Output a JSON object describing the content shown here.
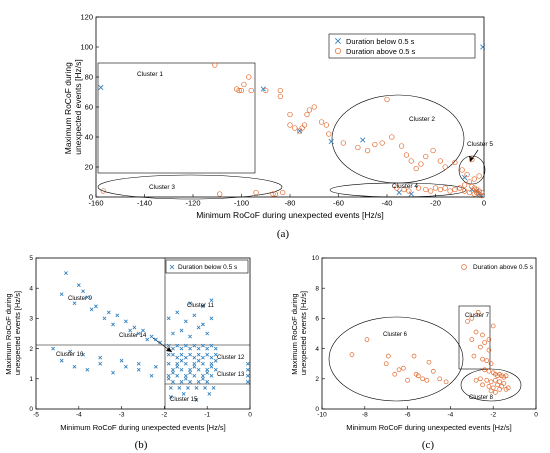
{
  "panel_a": {
    "caption": "(a)",
    "chart_data": {
      "type": "scatter",
      "xlabel": "Minimum RoCoF during unexpected events [Hz/s]",
      "ylabel": "Maximum RoCoF during unexpected events [Hz/s]",
      "xlim": [
        -160,
        0
      ],
      "ylim": [
        0,
        120
      ],
      "xticks": [
        "-160",
        "-140",
        "-120",
        "-100",
        "-80",
        "-60",
        "-40",
        "-20",
        "0"
      ],
      "yticks": [
        "0",
        "20",
        "40",
        "60",
        "80",
        "100",
        "120"
      ],
      "legend_position": "top-right",
      "series": [
        {
          "name": "Duration below 0.5 s",
          "marker": "x",
          "color": "#2a7ab9",
          "x": [
            -158,
            -91,
            -76,
            -63,
            -50,
            -8,
            -5,
            -3,
            -2,
            -1,
            -35,
            -30,
            -0.5
          ],
          "y": [
            73,
            72,
            44,
            37,
            38,
            13,
            5,
            4,
            2,
            1,
            3,
            2,
            100
          ]
        },
        {
          "name": "Duration above 0.5 s",
          "marker": "o",
          "color": "#e2662a",
          "x": [
            -157,
            -111,
            -102,
            -101,
            -100,
            -99,
            -97,
            -96,
            -90,
            -84,
            -84,
            -80,
            -80,
            -78,
            -76,
            -75,
            -74,
            -73,
            -72,
            -70,
            -67,
            -65,
            -64,
            -58,
            -52,
            -48,
            -45,
            -42,
            -40,
            -38,
            -34,
            -32,
            -30,
            -28,
            -26,
            -24,
            -21,
            -18,
            -16,
            -12,
            -9,
            -7,
            -5,
            -4,
            -2,
            -109,
            -94,
            -87,
            -86,
            -83,
            -10,
            -8,
            -6,
            -5,
            -4,
            -3,
            -2,
            -1,
            -36,
            -33,
            -31,
            -27,
            -24,
            -22,
            -20,
            -18,
            -16,
            -14,
            -12,
            -10,
            -8,
            -6,
            -4,
            -3,
            -2,
            -1
          ],
          "y": [
            4,
            88,
            72,
            71,
            71,
            75,
            80,
            71,
            71,
            67,
            71,
            55,
            48,
            46,
            44,
            46,
            48,
            55,
            58,
            60,
            50,
            48,
            42,
            36,
            33,
            31,
            35,
            36,
            65,
            40,
            34,
            28,
            24,
            19,
            22,
            27,
            31,
            24,
            20,
            23,
            18,
            15,
            25,
            12,
            14,
            2,
            3,
            2,
            2,
            3,
            6,
            8,
            10,
            7,
            6,
            5,
            4,
            3,
            6,
            5,
            4,
            6,
            5,
            4,
            6,
            5,
            6,
            4,
            5,
            6,
            4,
            3,
            2,
            3,
            2,
            1
          ]
        }
      ],
      "annotations": [
        "Cluster 1",
        "Cluster 2",
        "Cluster 3",
        "Cluster 4",
        "Cluster 5"
      ]
    }
  },
  "panel_b": {
    "caption": "(b)",
    "chart_data": {
      "type": "scatter",
      "xlabel": "Minimum RoCoF during unexpected events [Hz/s]",
      "ylabel": "Maximum RoCoF during unexpected events [Hz/s]",
      "xlim": [
        -5,
        0
      ],
      "ylim": [
        0,
        5
      ],
      "xticks": [
        "-5",
        "-4",
        "-3",
        "-2",
        "-1",
        "0"
      ],
      "yticks": [
        "0",
        "1",
        "2",
        "3",
        "4",
        "5"
      ],
      "legend_position": "top-right",
      "series": [
        {
          "name": "Duration below 0.5 s",
          "marker": "x",
          "color": "#2a7ab9",
          "x": [
            -4.3,
            -4.0,
            -3.9,
            -3.8,
            -3.6,
            -3.3,
            -3.1,
            -2.9,
            -2.7,
            -2.5,
            -2.3,
            -2.2,
            -4.4,
            -4.1,
            -3.7,
            -3.4,
            -3.2,
            -2.8,
            -2.6,
            -2.4,
            -2.1,
            -4.6,
            -4.2,
            -3.9,
            -3.5,
            -3.0,
            -2.6,
            -2.2,
            -1.9,
            -1.8,
            -1.7,
            -1.6,
            -1.5,
            -1.4,
            -1.3,
            -1.2,
            -1.1,
            -1.0,
            -0.9,
            -0.8,
            -1.9,
            -1.8,
            -1.7,
            -1.6,
            -1.5,
            -1.4,
            -1.3,
            -1.2,
            -1.1,
            -1.0,
            -0.9,
            -0.8,
            -1.9,
            -1.7,
            -1.5,
            -1.3,
            -1.1,
            -0.9,
            -1.8,
            -1.6,
            -1.4,
            -1.2,
            -1.0,
            -0.8,
            -1.9,
            -1.7,
            -1.5,
            -1.3,
            -1.1,
            -0.9,
            -1.8,
            -1.6,
            -1.4,
            -1.2,
            -1.0,
            -1.85,
            -1.65,
            -1.45,
            -1.25,
            -1.05,
            -0.85,
            -1.9,
            -1.8,
            -1.7,
            -1.6,
            -1.5,
            -1.4,
            -1.3,
            -1.2,
            -1.1,
            -1.0,
            -0.9,
            -0.8,
            -1.8,
            -1.6,
            -1.4,
            -1.2,
            -1.0,
            -1.9,
            -1.7,
            -1.5,
            -1.3,
            -1.1,
            -0.9,
            -1.85,
            -1.55,
            -1.25,
            -0.95,
            -4.4,
            -4.1,
            -3.8,
            -3.5,
            -3.2,
            -2.9,
            -2.6,
            -2.3,
            -0.05,
            -0.05,
            -0.05,
            -0.05,
            -1.4,
            -1.1,
            -0.9
          ],
          "y": [
            4.5,
            4.1,
            3.9,
            3.7,
            3.4,
            3.2,
            3.1,
            2.9,
            2.7,
            2.6,
            2.4,
            2.3,
            3.8,
            3.5,
            3.3,
            3.0,
            2.8,
            2.6,
            2.5,
            2.3,
            2.2,
            2.0,
            1.9,
            1.8,
            1.7,
            1.6,
            1.5,
            1.4,
            2.1,
            2.0,
            2.1,
            2.0,
            2.1,
            2.0,
            2.1,
            2.0,
            2.1,
            2.0,
            2.1,
            2.0,
            1.8,
            1.8,
            1.7,
            1.8,
            1.7,
            1.8,
            1.7,
            1.8,
            1.7,
            1.8,
            1.7,
            1.8,
            1.5,
            1.5,
            1.5,
            1.5,
            1.5,
            1.5,
            1.3,
            1.3,
            1.3,
            1.3,
            1.3,
            1.3,
            1.1,
            1.1,
            1.1,
            1.1,
            1.1,
            1.1,
            0.9,
            0.9,
            0.9,
            0.9,
            0.9,
            0.7,
            0.7,
            0.7,
            0.7,
            0.7,
            0.7,
            1.0,
            1.2,
            1.4,
            1.6,
            1.0,
            1.2,
            1.4,
            1.6,
            1.0,
            1.2,
            1.4,
            1.6,
            2.5,
            2.6,
            2.4,
            2.7,
            2.5,
            3.0,
            3.2,
            2.9,
            3.1,
            2.8,
            3.0,
            0.4,
            0.5,
            0.3,
            0.5,
            1.6,
            1.4,
            1.3,
            1.5,
            1.2,
            1.4,
            1.3,
            1.1,
            1.5,
            1.3,
            1.1,
            0.9,
            3.5,
            3.4,
            3.6
          ]
        }
      ],
      "annotations": [
        "Cluster 9",
        "Cluster 10",
        "Cluster 11",
        "Cluster 12",
        "Cluster 13",
        "Cluster 14",
        "Cluster 15"
      ]
    }
  },
  "panel_c": {
    "caption": "(c)",
    "chart_data": {
      "type": "scatter",
      "xlabel": "Minimum RoCoF during unexpected events [Hz/s]",
      "ylabel": "Maximum RoCoF during unexpected events [Hz/s]",
      "xlim": [
        -10,
        0
      ],
      "ylim": [
        0,
        10
      ],
      "xticks": [
        "-10",
        "-8",
        "-6",
        "-4",
        "-2",
        "0"
      ],
      "yticks": [
        "0",
        "2",
        "4",
        "6",
        "8",
        "10"
      ],
      "legend_position": "top-right",
      "series": [
        {
          "name": "Duration above 0.5 s",
          "marker": "o",
          "color": "#e2662a",
          "x": [
            -8.6,
            -7.9,
            -7.0,
            -6.6,
            -6.4,
            -6.0,
            -5.7,
            -5.5,
            -5.3,
            -5.0,
            -4.8,
            -4.5,
            -4.2,
            -6.9,
            -6.2,
            -5.6,
            -5.1,
            -3.2,
            -3.0,
            -2.8,
            -2.6,
            -2.4,
            -2.2,
            -2.0,
            -2.9,
            -2.5,
            -2.3,
            -2.1,
            -3.0,
            -2.7,
            -2.5,
            -2.2,
            -2.4,
            -2.2,
            -2.0,
            -1.9,
            -1.8,
            -1.7,
            -1.6,
            -1.5,
            -1.4,
            -2.8,
            -2.6,
            -2.3,
            -2.1,
            -1.9,
            -1.7,
            -1.5,
            -2.5,
            -2.2,
            -2.0,
            -1.8,
            -1.6,
            -1.4,
            -1.3,
            -2.1,
            -1.9,
            -1.7
          ],
          "y": [
            3.6,
            4.6,
            3.0,
            2.3,
            2.6,
            1.9,
            3.5,
            2.2,
            2.0,
            3.1,
            2.5,
            2.0,
            1.8,
            3.5,
            2.7,
            2.3,
            1.9,
            5.8,
            4.6,
            5.1,
            4.1,
            4.4,
            3.9,
            5.5,
            3.5,
            3.3,
            3.2,
            3.0,
            6.0,
            6.4,
            4.9,
            4.6,
            2.6,
            2.5,
            2.4,
            2.3,
            2.2,
            2.3,
            2.2,
            2.1,
            2.2,
            1.9,
            2.0,
            1.9,
            1.8,
            1.9,
            1.8,
            1.7,
            1.6,
            1.5,
            1.4,
            1.6,
            1.5,
            1.3,
            1.4,
            1.2,
            1.1,
            1.3
          ]
        }
      ],
      "annotations": [
        "Cluster 6",
        "Cluster 7",
        "Cluster 8"
      ]
    }
  }
}
